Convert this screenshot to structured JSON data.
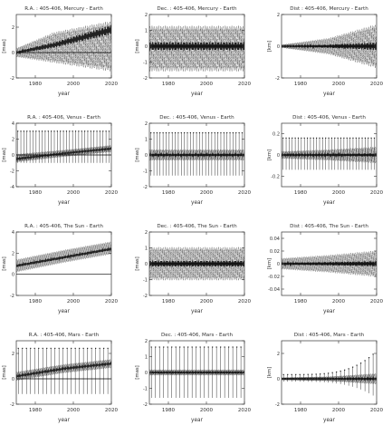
{
  "figure": {
    "colors": {
      "ink": "#222222",
      "frame": "#333333",
      "zero_line": "#000000",
      "background": "#ffffff"
    }
  },
  "chart_data": [
    {
      "type": "line",
      "title": "R.A. : 405-406, Mercury - Earth",
      "xlabel": "year",
      "ylabel": "[mas]",
      "xlim": [
        1970,
        2020
      ],
      "ylim": [
        -2,
        3
      ],
      "x_ticks": [
        1980,
        2000,
        2020
      ],
      "y_ticks": [
        -2,
        0,
        2
      ],
      "x_tick_labels": [
        "1980",
        "2000",
        "2020"
      ],
      "y_tick_labels": [
        "-2",
        "0",
        "2"
      ],
      "series": [
        {
          "style": "ensemble",
          "values": [
            {
              "x": 1970,
              "y": 0.0
            },
            {
              "x": 1980,
              "y": 0.3
            },
            {
              "x": 1990,
              "y": 0.6
            },
            {
              "x": 2000,
              "y": 1.0
            },
            {
              "x": 2010,
              "y": 1.4
            },
            {
              "x": 2020,
              "y": 1.8
            }
          ]
        }
      ],
      "envelope": [
        {
          "x": 1970,
          "low": -0.4,
          "high": 0.4
        },
        {
          "x": 1990,
          "low": -1.0,
          "high": 1.8
        },
        {
          "x": 2020,
          "low": -1.8,
          "high": 2.8
        }
      ]
    },
    {
      "type": "line",
      "title": "Dec. : 405-406, Mercury - Earth",
      "xlabel": "year",
      "ylabel": "[mas]",
      "xlim": [
        1970,
        2020
      ],
      "ylim": [
        -2,
        2
      ],
      "x_ticks": [
        1980,
        2000,
        2020
      ],
      "y_ticks": [
        -2,
        -1,
        0,
        1,
        2
      ],
      "x_tick_labels": [
        "1980",
        "2000",
        "2020"
      ],
      "y_tick_labels": [
        "-2",
        "-1",
        "0",
        "1",
        "2"
      ],
      "series": [
        {
          "style": "ensemble",
          "values": [
            {
              "x": 1970,
              "y": 0.0
            },
            {
              "x": 1995,
              "y": 0.0
            },
            {
              "x": 2020,
              "y": 0.0
            }
          ]
        }
      ],
      "envelope": [
        {
          "x": 1970,
          "low": -1.8,
          "high": 1.5
        },
        {
          "x": 1995,
          "low": -1.8,
          "high": 1.5
        },
        {
          "x": 2020,
          "low": -1.8,
          "high": 1.5
        }
      ]
    },
    {
      "type": "line",
      "title": "Dist : 405-406, Mercury - Earth",
      "xlabel": "year",
      "ylabel": "[km]",
      "xlim": [
        1970,
        2020
      ],
      "ylim": [
        -2,
        2
      ],
      "x_ticks": [
        1980,
        2000,
        2020
      ],
      "y_ticks": [
        -2,
        0,
        2
      ],
      "x_tick_labels": [
        "1980",
        "2000",
        "2020"
      ],
      "y_tick_labels": [
        "-2",
        "0",
        "2"
      ],
      "series": [
        {
          "style": "ensemble",
          "values": [
            {
              "x": 1970,
              "y": 0.0
            },
            {
              "x": 1995,
              "y": 0.0
            },
            {
              "x": 2020,
              "y": 0.0
            }
          ]
        }
      ],
      "envelope": [
        {
          "x": 1970,
          "low": -0.1,
          "high": 0.1
        },
        {
          "x": 1995,
          "low": -0.6,
          "high": 0.6
        },
        {
          "x": 2020,
          "low": -1.6,
          "high": 1.6
        }
      ]
    },
    {
      "type": "line",
      "title": "R.A. : 405-406, Venus - Earth",
      "xlabel": "year",
      "ylabel": "[mas]",
      "xlim": [
        1970,
        2020
      ],
      "ylim": [
        -4,
        4
      ],
      "x_ticks": [
        1980,
        2000,
        2020
      ],
      "y_ticks": [
        -4,
        -2,
        0,
        2,
        4
      ],
      "x_tick_labels": [
        "1980",
        "2000",
        "2020"
      ],
      "y_tick_labels": [
        "-4",
        "-2",
        "0",
        "2",
        "4"
      ],
      "series": [
        {
          "style": "ensemble",
          "values": [
            {
              "x": 1970,
              "y": -0.5
            },
            {
              "x": 1995,
              "y": 0.2
            },
            {
              "x": 2020,
              "y": 0.8
            }
          ]
        }
      ],
      "envelope": [
        {
          "x": 1970,
          "low": -1.0,
          "high": 0.2
        },
        {
          "x": 1995,
          "low": -0.3,
          "high": 0.7
        },
        {
          "x": 2020,
          "low": 0.3,
          "high": 1.3
        }
      ],
      "spikes": {
        "period_years": 1.6,
        "high": 3.0,
        "low": -1.0
      }
    },
    {
      "type": "line",
      "title": "Dec. : 405-406, Venus - Earth",
      "xlabel": "year",
      "ylabel": "[mas]",
      "xlim": [
        1970,
        2020
      ],
      "ylim": [
        -2,
        2
      ],
      "x_ticks": [
        1980,
        2000,
        2020
      ],
      "y_ticks": [
        -2,
        -1,
        0,
        1,
        2
      ],
      "x_tick_labels": [
        "1980",
        "2000",
        "2020"
      ],
      "y_tick_labels": [
        "-2",
        "-1",
        "0",
        "1",
        "2"
      ],
      "series": [
        {
          "style": "ensemble",
          "values": [
            {
              "x": 1970,
              "y": 0.0
            },
            {
              "x": 1995,
              "y": 0.0
            },
            {
              "x": 2020,
              "y": 0.0
            }
          ]
        }
      ],
      "envelope": [
        {
          "x": 1970,
          "low": -0.4,
          "high": 0.4
        },
        {
          "x": 1995,
          "low": -0.4,
          "high": 0.4
        },
        {
          "x": 2020,
          "low": -0.4,
          "high": 0.4
        }
      ],
      "spikes": {
        "period_years": 1.6,
        "high": 1.4,
        "low": -1.3
      }
    },
    {
      "type": "line",
      "title": "Dist : 405-406, Venus - Earth",
      "xlabel": "year",
      "ylabel": "[km]",
      "xlim": [
        1970,
        2020
      ],
      "ylim": [
        -0.3,
        0.3
      ],
      "x_ticks": [
        1980,
        2000,
        2020
      ],
      "y_ticks": [
        -0.2,
        0,
        0.2
      ],
      "x_tick_labels": [
        "1980",
        "2000",
        "2020"
      ],
      "y_tick_labels": [
        "-0.2",
        "0",
        "0.2"
      ],
      "series": [
        {
          "style": "ensemble",
          "values": [
            {
              "x": 1970,
              "y": 0.0
            },
            {
              "x": 1995,
              "y": 0.0
            },
            {
              "x": 2020,
              "y": 0.0
            }
          ]
        }
      ],
      "envelope": [
        {
          "x": 1970,
          "low": -0.04,
          "high": 0.04
        },
        {
          "x": 1995,
          "low": -0.06,
          "high": 0.06
        },
        {
          "x": 2020,
          "low": -0.09,
          "high": 0.09
        }
      ],
      "spikes": {
        "period_years": 1.6,
        "high": 0.16,
        "low": -0.14
      }
    },
    {
      "type": "line",
      "title": "R.A. : 405-406, The Sun - Earth",
      "xlabel": "year",
      "ylabel": "[mas]",
      "xlim": [
        1970,
        2020
      ],
      "ylim": [
        -2,
        4
      ],
      "x_ticks": [
        1980,
        2000,
        2020
      ],
      "y_ticks": [
        -2,
        0,
        2,
        4
      ],
      "x_tick_labels": [
        "1980",
        "2000",
        "2020"
      ],
      "y_tick_labels": [
        "-2",
        "0",
        "2",
        "4"
      ],
      "series": [
        {
          "style": "ensemble",
          "values": [
            {
              "x": 1970,
              "y": 0.8
            },
            {
              "x": 1995,
              "y": 1.6
            },
            {
              "x": 2020,
              "y": 2.4
            }
          ]
        }
      ],
      "envelope": [
        {
          "x": 1970,
          "low": 0.1,
          "high": 1.5
        },
        {
          "x": 1995,
          "low": 1.0,
          "high": 2.4
        },
        {
          "x": 2020,
          "low": 1.8,
          "high": 3.2
        }
      ]
    },
    {
      "type": "line",
      "title": "Dec. : 405-406, The Sun - Earth",
      "xlabel": "year",
      "ylabel": "[mas]",
      "xlim": [
        1970,
        2020
      ],
      "ylim": [
        -2,
        2
      ],
      "x_ticks": [
        1980,
        2000,
        2020
      ],
      "y_ticks": [
        -2,
        -1,
        0,
        1,
        2
      ],
      "x_tick_labels": [
        "1980",
        "2000",
        "2020"
      ],
      "y_tick_labels": [
        "-2",
        "-1",
        "0",
        "1",
        "2"
      ],
      "series": [
        {
          "style": "ensemble",
          "values": [
            {
              "x": 1970,
              "y": 0.0
            },
            {
              "x": 1995,
              "y": 0.0
            },
            {
              "x": 2020,
              "y": 0.0
            }
          ]
        }
      ],
      "envelope": [
        {
          "x": 1970,
          "low": -1.2,
          "high": 1.2
        },
        {
          "x": 1995,
          "low": -1.2,
          "high": 1.2
        },
        {
          "x": 2020,
          "low": -1.2,
          "high": 1.2
        }
      ]
    },
    {
      "type": "line",
      "title": "Dist : 405-406, The Sun - Earth",
      "xlabel": "year",
      "ylabel": "[km]",
      "xlim": [
        1970,
        2020
      ],
      "ylim": [
        -0.05,
        0.05
      ],
      "x_ticks": [
        1980,
        2000,
        2020
      ],
      "y_ticks": [
        -0.04,
        -0.02,
        0,
        0.02,
        0.04
      ],
      "x_tick_labels": [
        "1980",
        "2000",
        "2020"
      ],
      "y_tick_labels": [
        "-0.04",
        "-0.02",
        "0",
        "0.02",
        "0.04"
      ],
      "series": [
        {
          "style": "ensemble",
          "values": [
            {
              "x": 1970,
              "y": 0.0
            },
            {
              "x": 1995,
              "y": 0.0
            },
            {
              "x": 2020,
              "y": 0.0
            }
          ]
        }
      ],
      "envelope": [
        {
          "x": 1970,
          "low": -0.01,
          "high": 0.01
        },
        {
          "x": 1995,
          "low": -0.016,
          "high": 0.016
        },
        {
          "x": 2020,
          "low": -0.024,
          "high": 0.024
        }
      ]
    },
    {
      "type": "line",
      "title": "R.A. : 405-406, Mars - Earth",
      "xlabel": "year",
      "ylabel": "[mas]",
      "xlim": [
        1970,
        2020
      ],
      "ylim": [
        -2,
        3
      ],
      "x_ticks": [
        1980,
        2000,
        2020
      ],
      "y_ticks": [
        -2,
        0,
        2
      ],
      "x_tick_labels": [
        "1980",
        "2000",
        "2020"
      ],
      "y_tick_labels": [
        "-2",
        "0",
        "2"
      ],
      "series": [
        {
          "style": "ensemble",
          "values": [
            {
              "x": 1970,
              "y": 0.2
            },
            {
              "x": 1995,
              "y": 0.8
            },
            {
              "x": 2020,
              "y": 1.2
            }
          ]
        }
      ],
      "envelope": [
        {
          "x": 1970,
          "low": -0.2,
          "high": 0.6
        },
        {
          "x": 1995,
          "low": 0.4,
          "high": 1.2
        },
        {
          "x": 2020,
          "low": 0.8,
          "high": 1.6
        }
      ],
      "spikes": {
        "period_years": 2.14,
        "high": 2.4,
        "low": -1.2
      }
    },
    {
      "type": "line",
      "title": "Dec. : 405-406, Mars - Earth",
      "xlabel": "year",
      "ylabel": "[mas]",
      "xlim": [
        1970,
        2020
      ],
      "ylim": [
        -2,
        2
      ],
      "x_ticks": [
        1980,
        2000,
        2020
      ],
      "y_ticks": [
        -2,
        -1,
        0,
        1,
        2
      ],
      "x_tick_labels": [
        "1980",
        "2000",
        "2020"
      ],
      "y_tick_labels": [
        "-2",
        "-1",
        "0",
        "1",
        "2"
      ],
      "series": [
        {
          "style": "ensemble",
          "values": [
            {
              "x": 1970,
              "y": 0.0
            },
            {
              "x": 1995,
              "y": 0.0
            },
            {
              "x": 2020,
              "y": 0.0
            }
          ]
        }
      ],
      "envelope": [
        {
          "x": 1970,
          "low": -0.2,
          "high": 0.2
        },
        {
          "x": 1995,
          "low": -0.2,
          "high": 0.2
        },
        {
          "x": 2020,
          "low": -0.2,
          "high": 0.2
        }
      ],
      "spikes": {
        "period_years": 2.14,
        "high": 1.6,
        "low": -1.6
      }
    },
    {
      "type": "line",
      "title": "Dist : 405-406, Mars - Earth",
      "xlabel": "year",
      "ylabel": "[km]",
      "xlim": [
        1970,
        2020
      ],
      "ylim": [
        -2,
        3
      ],
      "x_ticks": [
        1980,
        2000,
        2020
      ],
      "y_ticks": [
        -2,
        0,
        2
      ],
      "x_tick_labels": [
        "1980",
        "2000",
        "2020"
      ],
      "y_tick_labels": [
        "-2",
        "0",
        "2"
      ],
      "series": [
        {
          "style": "ensemble",
          "values": [
            {
              "x": 1970,
              "y": 0.0
            },
            {
              "x": 1995,
              "y": 0.0
            },
            {
              "x": 2020,
              "y": 0.0
            }
          ]
        }
      ],
      "envelope": [
        {
          "x": 1970,
          "low": -0.1,
          "high": 0.1
        },
        {
          "x": 1995,
          "low": -0.2,
          "high": 0.2
        },
        {
          "x": 2020,
          "low": -0.5,
          "high": 0.5
        }
      ],
      "spikes": {
        "period_years": 2.14,
        "high": 2.2,
        "low": -1.5,
        "grows": true
      }
    }
  ]
}
